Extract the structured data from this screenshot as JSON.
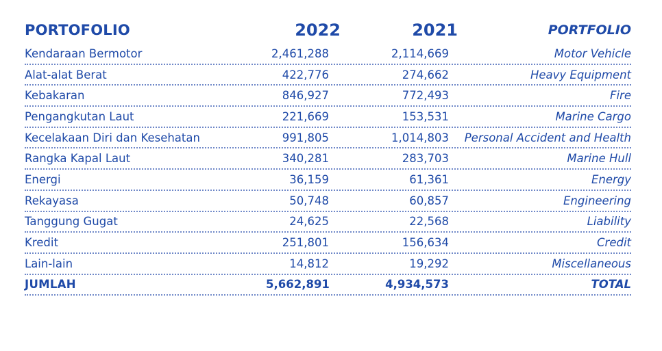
{
  "header": {
    "label_id": "PORTOFOLIO",
    "year_current": "2022",
    "year_previous": "2021",
    "label_en": "PORTFOLIO"
  },
  "rows": [
    {
      "id": "Kendaraan Bermotor",
      "v2022": "2,461,288",
      "v2021": "2,114,669",
      "en": "Motor Vehicle"
    },
    {
      "id": "Alat-alat Berat",
      "v2022": "422,776",
      "v2021": "274,662",
      "en": "Heavy Equipment"
    },
    {
      "id": "Kebakaran",
      "v2022": "846,927",
      "v2021": "772,493",
      "en": "Fire"
    },
    {
      "id": "Pengangkutan Laut",
      "v2022": "221,669",
      "v2021": "153,531",
      "en": "Marine Cargo"
    },
    {
      "id": "Kecelakaan Diri dan Kesehatan",
      "v2022": "991,805",
      "v2021": "1,014,803",
      "en": "Personal Accident and Health"
    },
    {
      "id": "Rangka Kapal Laut",
      "v2022": "340,281",
      "v2021": "283,703",
      "en": "Marine Hull"
    },
    {
      "id": "Energi",
      "v2022": "36,159",
      "v2021": "61,361",
      "en": "Energy"
    },
    {
      "id": "Rekayasa",
      "v2022": "50,748",
      "v2021": "60,857",
      "en": "Engineering"
    },
    {
      "id": "Tanggung Gugat",
      "v2022": "24,625",
      "v2021": "22,568",
      "en": "Liability"
    },
    {
      "id": "Kredit",
      "v2022": "251,801",
      "v2021": "156,634",
      "en": "Credit"
    },
    {
      "id": "Lain-lain",
      "v2022": "14,812",
      "v2021": "19,292",
      "en": "Miscellaneous"
    }
  ],
  "total": {
    "id": "JUMLAH",
    "v2022": "5,662,891",
    "v2021": "4,934,573",
    "en": "TOTAL"
  }
}
